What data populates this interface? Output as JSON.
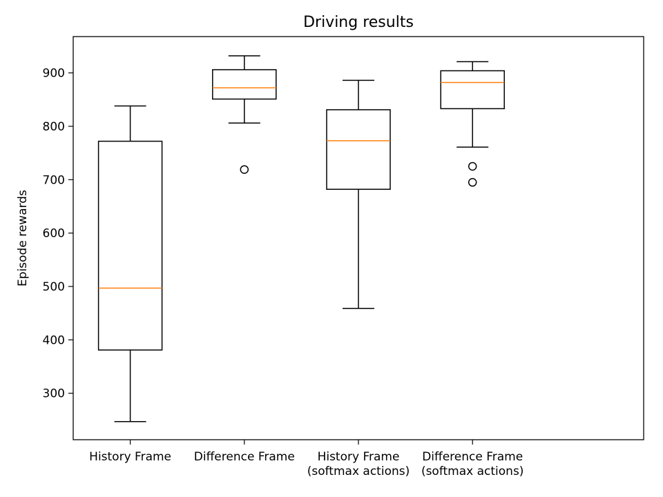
{
  "chart_data": {
    "type": "box",
    "title": "Driving results",
    "xlabel": "",
    "ylabel": "Episode rewards",
    "ylim": [
      213,
      968
    ],
    "yticks": [
      300,
      400,
      500,
      600,
      700,
      800,
      900
    ],
    "grid": false,
    "colors": {
      "box": "#000000",
      "median": "#ff7f0e",
      "background": "#ffffff"
    },
    "categories": [
      {
        "lines": [
          "History Frame"
        ]
      },
      {
        "lines": [
          "Difference Frame"
        ]
      },
      {
        "lines": [
          "History Frame",
          "(softmax actions)"
        ]
      },
      {
        "lines": [
          "Difference Frame",
          "(softmax actions)"
        ]
      }
    ],
    "boxes": [
      {
        "whisker_low": 247,
        "q1": 381,
        "median": 497,
        "q3": 772,
        "whisker_high": 838,
        "outliers": []
      },
      {
        "whisker_low": 806,
        "q1": 851,
        "median": 872,
        "q3": 906,
        "whisker_high": 932,
        "outliers": [
          719
        ]
      },
      {
        "whisker_low": 459,
        "q1": 682,
        "median": 773,
        "q3": 831,
        "whisker_high": 886,
        "outliers": []
      },
      {
        "whisker_low": 761,
        "q1": 833,
        "median": 882,
        "q3": 904,
        "whisker_high": 921,
        "outliers": [
          725,
          695
        ]
      }
    ]
  }
}
